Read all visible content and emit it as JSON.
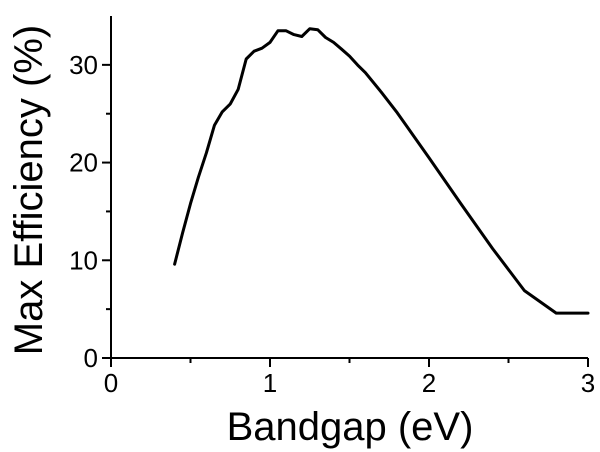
{
  "chart_data": {
    "type": "line",
    "title": "",
    "xlabel": "Bandgap (eV)",
    "ylabel": "Max Efficiency (%)",
    "xlim": [
      0,
      3
    ],
    "ylim": [
      0,
      35
    ],
    "x_ticks": [
      0,
      1,
      2,
      3
    ],
    "x_tick_labels": [
      "0",
      "1",
      "2",
      "3"
    ],
    "y_ticks": [
      0,
      10,
      20,
      30
    ],
    "y_tick_labels": [
      "0",
      "10",
      "20",
      "30"
    ],
    "grid": false,
    "legend": "none",
    "colors": {
      "line": "#000000",
      "axes": "#000000"
    },
    "series": [
      {
        "x": [
          0.4,
          0.45,
          0.5,
          0.55,
          0.6,
          0.65,
          0.7,
          0.75,
          0.8,
          0.85,
          0.9,
          0.95,
          1.0,
          1.05,
          1.1,
          1.15,
          1.2,
          1.25,
          1.3,
          1.35,
          1.4,
          1.45,
          1.5,
          1.55,
          1.6,
          1.7,
          1.8,
          1.9,
          2.0,
          2.2,
          2.4,
          2.6,
          2.8,
          3.0
        ],
        "y": [
          9.6,
          12.8,
          15.8,
          18.5,
          21.0,
          23.8,
          25.2,
          26.0,
          27.5,
          30.6,
          31.4,
          31.7,
          32.3,
          33.5,
          33.5,
          33.1,
          32.9,
          33.7,
          33.6,
          32.8,
          32.3,
          31.6,
          30.9,
          30.0,
          29.2,
          27.2,
          25.1,
          22.8,
          20.5,
          15.8,
          11.2,
          6.9,
          4.6,
          4.6
        ]
      }
    ]
  }
}
